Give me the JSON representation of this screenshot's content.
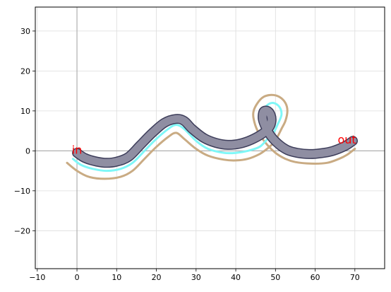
{
  "chart_data": {
    "type": "line",
    "title": "",
    "xlabel": "",
    "ylabel": "",
    "xlim": [
      -10.5,
      77.5
    ],
    "ylim": [
      -29.5,
      36
    ],
    "x_ticks": [
      -10,
      0,
      10,
      20,
      30,
      40,
      50,
      60,
      70
    ],
    "y_ticks": [
      -20,
      -10,
      0,
      10,
      20,
      30
    ],
    "x_tick_labels": [
      "−10",
      "0",
      "10",
      "20",
      "30",
      "40",
      "50",
      "60",
      "70"
    ],
    "y_tick_labels": [
      "−20",
      "−10",
      "0",
      "10",
      "20",
      "30"
    ],
    "grid": true,
    "reference_lines": {
      "x": 0,
      "y": 0,
      "color": "#b0b0b0"
    },
    "annotations": [
      {
        "text": "in",
        "x": 0,
        "y": 0
      },
      {
        "text": "out",
        "x": 68,
        "y": 2.5
      }
    ],
    "series": [
      {
        "color": "#c9ab83",
        "style": "outline",
        "points": [
          [
            -2.5,
            -3
          ],
          [
            0,
            -5
          ],
          [
            3,
            -6.5
          ],
          [
            7,
            -7
          ],
          [
            11,
            -6.5
          ],
          [
            14,
            -5
          ],
          [
            17,
            -2
          ],
          [
            20,
            1
          ],
          [
            23,
            3.5
          ],
          [
            25,
            4.5
          ],
          [
            27,
            3
          ],
          [
            30,
            0.5
          ],
          [
            33,
            -1.2
          ],
          [
            37,
            -2.2
          ],
          [
            40,
            -2.4
          ],
          [
            43,
            -2
          ],
          [
            46,
            -0.8
          ],
          [
            48,
            0.6
          ],
          [
            49.5,
            2
          ],
          [
            50.5,
            3.5
          ],
          [
            51.5,
            5.5
          ],
          [
            52.5,
            7.5
          ],
          [
            53,
            10
          ],
          [
            52.5,
            12
          ],
          [
            51,
            13.5
          ],
          [
            49,
            14
          ],
          [
            47,
            13.5
          ],
          [
            45.5,
            12
          ],
          [
            44.5,
            10
          ],
          [
            44.5,
            8
          ],
          [
            45.5,
            5
          ],
          [
            47.5,
            2
          ],
          [
            50,
            -0.5
          ],
          [
            52.5,
            -2
          ],
          [
            55,
            -2.8
          ],
          [
            59,
            -3.2
          ],
          [
            63,
            -3
          ],
          [
            66,
            -2
          ],
          [
            68,
            -1
          ],
          [
            70,
            0.5
          ]
        ]
      },
      {
        "color": "#7ff7f7",
        "style": "outline",
        "points": [
          [
            -1,
            -2
          ],
          [
            1,
            -3.5
          ],
          [
            4,
            -4.5
          ],
          [
            7.5,
            -5
          ],
          [
            11,
            -4.5
          ],
          [
            14,
            -3
          ],
          [
            17,
            0
          ],
          [
            20,
            3
          ],
          [
            23,
            5.5
          ],
          [
            25,
            6.5
          ],
          [
            27,
            5.5
          ],
          [
            30,
            2.5
          ],
          [
            33,
            0.5
          ],
          [
            37,
            -0.5
          ],
          [
            40,
            -0.5
          ],
          [
            43,
            0
          ],
          [
            46,
            1
          ],
          [
            48,
            3
          ],
          [
            49.5,
            4.5
          ],
          [
            50.5,
            6.5
          ],
          [
            51.5,
            9
          ],
          [
            51,
            11
          ],
          [
            49.5,
            12
          ],
          [
            48,
            11.5
          ],
          [
            47,
            10
          ],
          [
            47,
            8
          ],
          [
            48,
            5.5
          ],
          [
            49.5,
            3
          ],
          [
            51.5,
            1
          ],
          [
            54,
            -0.5
          ],
          [
            57,
            -1.2
          ],
          [
            60,
            -1.3
          ],
          [
            63,
            -1
          ],
          [
            66,
            0
          ],
          [
            69,
            1.5
          ]
        ]
      },
      {
        "color": "#8f8ea2",
        "style": "ribbon",
        "points": [
          [
            0,
            -0.5
          ],
          [
            2,
            -1.8
          ],
          [
            5,
            -2.7
          ],
          [
            7.5,
            -3
          ],
          [
            10,
            -2.7
          ],
          [
            13,
            -1.5
          ],
          [
            16,
            1.5
          ],
          [
            19,
            4.5
          ],
          [
            22,
            7
          ],
          [
            25,
            8
          ],
          [
            27,
            7.5
          ],
          [
            29,
            5.5
          ],
          [
            32,
            3.2
          ],
          [
            35,
            2
          ],
          [
            38,
            1.5
          ],
          [
            41,
            1.8
          ],
          [
            44,
            2.8
          ],
          [
            47,
            4.5
          ],
          [
            48.5,
            6
          ],
          [
            49,
            7.5
          ],
          [
            48.8,
            9
          ],
          [
            48,
            10
          ],
          [
            47,
            9.8
          ],
          [
            46.8,
            8
          ],
          [
            47.5,
            6
          ],
          [
            49,
            3.5
          ],
          [
            51,
            1.5
          ],
          [
            53,
            0.2
          ],
          [
            55.5,
            -0.5
          ],
          [
            58.5,
            -0.8
          ],
          [
            61.5,
            -0.6
          ],
          [
            64.5,
            0
          ],
          [
            67.5,
            1.2
          ],
          [
            69.5,
            2.5
          ]
        ]
      }
    ]
  }
}
